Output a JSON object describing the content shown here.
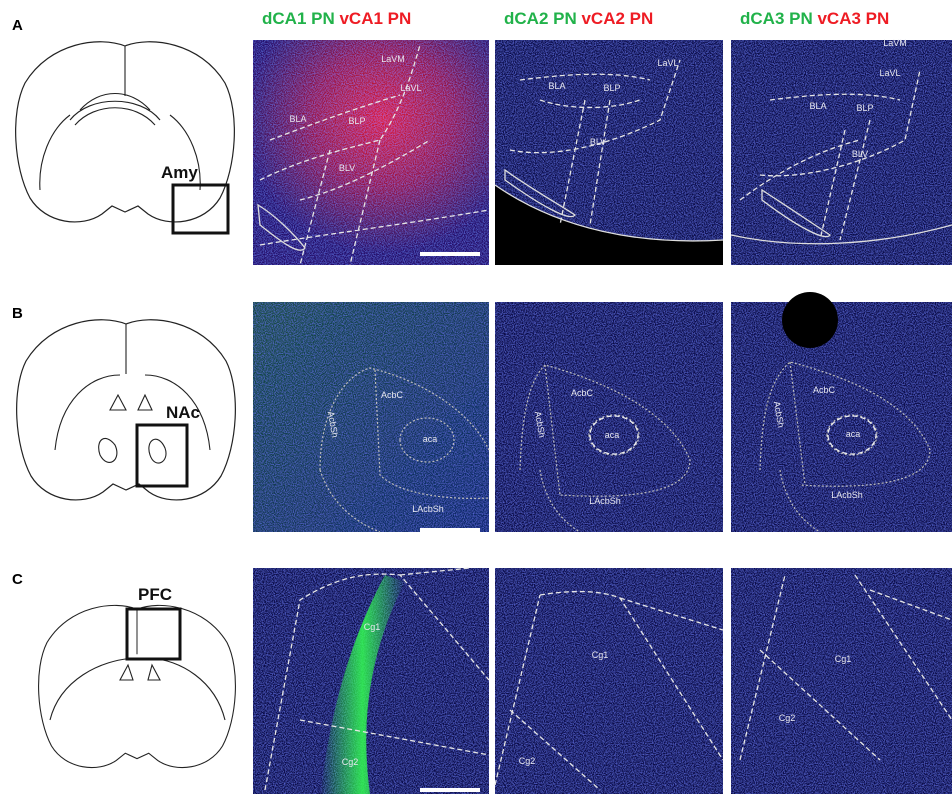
{
  "columns": [
    {
      "green": "dCA1 PN",
      "red": "vCA1 PN"
    },
    {
      "green": "dCA2 PN",
      "red": "vCA2 PN"
    },
    {
      "green": "dCA3 PN",
      "red": "vCA3 PN"
    }
  ],
  "panels": [
    {
      "label": "A",
      "region": "Amy",
      "images": [
        {
          "labels": [
            "LaVM",
            "LaVL",
            "BLA",
            "BLP",
            "BLV"
          ]
        },
        {
          "labels": [
            "LaVL",
            "BLA",
            "BLP",
            "BLV"
          ]
        },
        {
          "labels": [
            "LaVM",
            "LaVL",
            "BLA",
            "BLP",
            "BLV"
          ]
        }
      ]
    },
    {
      "label": "B",
      "region": "NAc",
      "images": [
        {
          "labels": [
            "AcbSh",
            "AcbC",
            "aca",
            "LAcbSh"
          ]
        },
        {
          "labels": [
            "AcbSh",
            "AcbC",
            "aca",
            "LAcbSh"
          ]
        },
        {
          "labels": [
            "AcbSh",
            "AcbC",
            "aca",
            "LAcbSh"
          ]
        }
      ]
    },
    {
      "label": "C",
      "region": "PFC",
      "images": [
        {
          "labels": [
            "Cg1",
            "Cg2"
          ]
        },
        {
          "labels": [
            "Cg1",
            "Cg2"
          ]
        },
        {
          "labels": [
            "Cg1",
            "Cg2"
          ]
        }
      ]
    }
  ]
}
